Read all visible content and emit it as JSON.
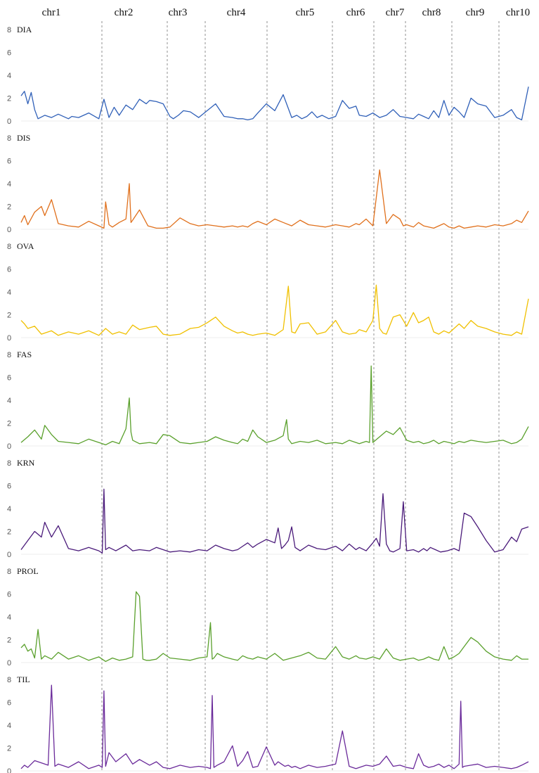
{
  "chart_data": {
    "type": "line",
    "title": "",
    "xlabel": "",
    "ylabel": "",
    "chromosomes": [
      "chr1",
      "chr2",
      "chr3",
      "chr4",
      "chr5",
      "chr6",
      "chr7",
      "chr8",
      "chr9",
      "chr10"
    ],
    "ylim": [
      0,
      8
    ],
    "yticks": [
      0,
      2,
      4,
      6,
      8
    ],
    "grid": false,
    "series": [
      {
        "name": "DIA",
        "color": "#3060b8",
        "x": [
          0,
          2,
          4,
          6,
          8,
          10,
          14,
          18,
          22,
          28,
          30,
          34,
          40,
          46,
          49,
          52,
          55,
          58,
          62,
          66,
          70,
          74,
          76,
          80,
          84,
          88,
          90,
          93,
          96,
          100,
          105,
          110,
          115,
          120,
          125,
          128,
          131,
          134,
          137,
          140,
          145,
          150,
          155,
          160,
          163,
          166,
          169,
          172,
          175,
          178,
          182,
          186,
          190,
          194,
          198,
          200,
          204,
          208,
          212,
          216,
          220,
          224,
          228,
          232,
          235,
          238,
          241,
          244,
          247,
          250,
          253,
          256,
          259,
          262,
          266,
          270,
          275,
          280,
          285,
          290,
          293,
          296,
          300
        ],
        "y": [
          2.2,
          2.6,
          1.5,
          2.5,
          1.0,
          0.2,
          0.5,
          0.3,
          0.6,
          0.2,
          0.4,
          0.3,
          0.7,
          0.2,
          1.9,
          0.3,
          1.2,
          0.5,
          1.4,
          1.0,
          1.9,
          1.5,
          1.8,
          1.7,
          1.5,
          0.4,
          0.2,
          0.5,
          0.9,
          0.8,
          0.3,
          0.9,
          1.5,
          0.4,
          0.3,
          0.2,
          0.2,
          0.1,
          0.2,
          0.7,
          1.5,
          0.9,
          2.3,
          0.3,
          0.5,
          0.2,
          0.4,
          0.8,
          0.3,
          0.5,
          0.2,
          0.4,
          1.8,
          1.1,
          1.3,
          0.5,
          0.4,
          0.7,
          0.3,
          0.5,
          1.0,
          0.4,
          0.3,
          0.2,
          0.6,
          0.4,
          0.2,
          0.9,
          0.3,
          1.8,
          0.5,
          1.2,
          0.8,
          0.3,
          2.0,
          1.5,
          1.3,
          0.3,
          0.5,
          1.0,
          0.3,
          0.1,
          3.0
        ]
      },
      {
        "name": "DIS",
        "color": "#e0701c",
        "x": [
          0,
          2,
          4,
          8,
          12,
          14,
          18,
          22,
          28,
          34,
          40,
          46,
          49,
          50,
          52,
          54,
          58,
          62,
          64,
          65,
          66,
          70,
          75,
          80,
          84,
          88,
          94,
          100,
          105,
          110,
          115,
          120,
          125,
          128,
          131,
          134,
          137,
          140,
          145,
          150,
          155,
          160,
          165,
          170,
          175,
          180,
          186,
          190,
          194,
          198,
          200,
          204,
          208,
          212,
          216,
          220,
          224,
          226,
          228,
          232,
          235,
          238,
          241,
          244,
          247,
          250,
          253,
          256,
          259,
          262,
          266,
          270,
          275,
          280,
          285,
          290,
          293,
          296,
          300
        ],
        "y": [
          0.6,
          1.2,
          0.4,
          1.5,
          2.0,
          1.2,
          2.6,
          0.5,
          0.3,
          0.2,
          0.7,
          0.3,
          0.1,
          2.4,
          0.4,
          0.2,
          0.6,
          0.9,
          4.0,
          0.6,
          0.8,
          1.7,
          0.3,
          0.1,
          0.1,
          0.2,
          1.0,
          0.5,
          0.3,
          0.4,
          0.3,
          0.2,
          0.3,
          0.2,
          0.3,
          0.2,
          0.5,
          0.7,
          0.4,
          0.9,
          0.6,
          0.3,
          0.8,
          0.4,
          0.3,
          0.2,
          0.4,
          0.3,
          0.2,
          0.5,
          0.4,
          0.9,
          0.3,
          5.2,
          0.5,
          1.3,
          0.9,
          0.3,
          0.4,
          0.2,
          0.6,
          0.3,
          0.2,
          0.1,
          0.3,
          0.5,
          0.2,
          0.1,
          0.3,
          0.1,
          0.2,
          0.3,
          0.2,
          0.4,
          0.3,
          0.5,
          0.8,
          0.6,
          1.6
        ]
      },
      {
        "name": "OVA",
        "color": "#f0c000",
        "x": [
          0,
          2,
          4,
          8,
          12,
          18,
          22,
          28,
          34,
          40,
          46,
          50,
          54,
          58,
          62,
          66,
          70,
          76,
          80,
          84,
          88,
          94,
          100,
          105,
          110,
          115,
          120,
          125,
          128,
          131,
          134,
          137,
          140,
          145,
          150,
          155,
          158,
          160,
          162,
          165,
          170,
          175,
          180,
          186,
          190,
          194,
          198,
          200,
          204,
          208,
          210,
          212,
          214,
          216,
          220,
          224,
          226,
          228,
          232,
          235,
          238,
          241,
          244,
          247,
          250,
          253,
          256,
          259,
          262,
          266,
          270,
          275,
          280,
          285,
          290,
          293,
          296,
          300
        ],
        "y": [
          1.5,
          1.2,
          0.8,
          1.0,
          0.3,
          0.6,
          0.2,
          0.5,
          0.3,
          0.6,
          0.2,
          0.8,
          0.3,
          0.5,
          0.3,
          1.1,
          0.7,
          0.9,
          1.0,
          0.3,
          0.2,
          0.3,
          0.8,
          0.9,
          1.3,
          1.8,
          1.0,
          0.6,
          0.4,
          0.5,
          0.3,
          0.2,
          0.3,
          0.4,
          0.2,
          0.7,
          4.5,
          0.5,
          0.4,
          1.2,
          1.3,
          0.3,
          0.5,
          1.5,
          0.5,
          0.3,
          0.4,
          0.7,
          0.5,
          1.5,
          4.6,
          0.8,
          0.4,
          0.3,
          1.8,
          2.0,
          1.5,
          1.0,
          2.2,
          1.3,
          1.5,
          1.8,
          0.5,
          0.3,
          0.6,
          0.4,
          0.8,
          1.2,
          0.8,
          1.5,
          1.0,
          0.8,
          0.5,
          0.3,
          0.2,
          0.5,
          0.3,
          3.4
        ]
      },
      {
        "name": "FAS",
        "color": "#5aa02c",
        "x": [
          0,
          4,
          8,
          12,
          14,
          18,
          22,
          28,
          34,
          40,
          46,
          50,
          54,
          58,
          62,
          64,
          65,
          66,
          70,
          76,
          80,
          84,
          88,
          94,
          100,
          105,
          110,
          115,
          120,
          125,
          128,
          131,
          134,
          137,
          140,
          145,
          150,
          155,
          157,
          158,
          160,
          165,
          170,
          175,
          180,
          186,
          190,
          194,
          198,
          200,
          204,
          206,
          207,
          208,
          212,
          216,
          220,
          224,
          228,
          232,
          235,
          238,
          241,
          244,
          247,
          250,
          253,
          256,
          259,
          262,
          266,
          270,
          275,
          280,
          285,
          290,
          293,
          296,
          300
        ],
        "y": [
          0.3,
          0.8,
          1.4,
          0.6,
          1.8,
          1.0,
          0.4,
          0.3,
          0.2,
          0.6,
          0.3,
          0.1,
          0.4,
          0.2,
          1.5,
          4.2,
          1.2,
          0.5,
          0.2,
          0.3,
          0.2,
          1.0,
          0.9,
          0.3,
          0.2,
          0.3,
          0.4,
          0.8,
          0.5,
          0.3,
          0.2,
          0.6,
          0.4,
          1.4,
          0.8,
          0.3,
          0.5,
          0.9,
          2.3,
          0.6,
          0.2,
          0.4,
          0.3,
          0.5,
          0.2,
          0.3,
          0.2,
          0.5,
          0.3,
          0.2,
          0.4,
          0.3,
          7.0,
          0.3,
          0.8,
          1.3,
          1.0,
          1.6,
          0.5,
          0.3,
          0.4,
          0.2,
          0.3,
          0.5,
          0.2,
          0.4,
          0.3,
          0.2,
          0.4,
          0.3,
          0.5,
          0.4,
          0.3,
          0.4,
          0.5,
          0.2,
          0.3,
          0.6,
          1.7
        ]
      },
      {
        "name": "KRN",
        "color": "#4a1a7a",
        "x": [
          0,
          4,
          8,
          12,
          14,
          18,
          22,
          28,
          34,
          40,
          46,
          48,
          49,
          50,
          52,
          56,
          62,
          66,
          70,
          76,
          80,
          84,
          88,
          94,
          100,
          105,
          110,
          115,
          120,
          125,
          128,
          131,
          134,
          137,
          140,
          145,
          150,
          152,
          154,
          156,
          158,
          160,
          162,
          165,
          170,
          175,
          180,
          186,
          190,
          194,
          198,
          200,
          204,
          208,
          210,
          212,
          214,
          216,
          218,
          220,
          224,
          226,
          228,
          232,
          235,
          238,
          240,
          242,
          245,
          248,
          252,
          256,
          259,
          262,
          266,
          270,
          275,
          280,
          285,
          290,
          293,
          296,
          300
        ],
        "y": [
          0.4,
          1.2,
          2.0,
          1.5,
          2.8,
          1.5,
          2.5,
          0.5,
          0.3,
          0.6,
          0.3,
          0.1,
          5.7,
          0.4,
          0.6,
          0.3,
          0.8,
          0.3,
          0.4,
          0.3,
          0.6,
          0.4,
          0.2,
          0.3,
          0.2,
          0.4,
          0.3,
          0.8,
          0.5,
          0.3,
          0.4,
          0.7,
          1.0,
          0.6,
          0.9,
          1.3,
          1.0,
          2.3,
          0.5,
          0.8,
          1.2,
          2.4,
          0.6,
          0.3,
          0.8,
          0.5,
          0.4,
          0.7,
          0.3,
          0.9,
          0.4,
          0.6,
          0.3,
          1.0,
          1.4,
          0.7,
          5.3,
          0.9,
          0.3,
          0.2,
          0.5,
          4.6,
          0.3,
          0.4,
          0.2,
          0.5,
          0.3,
          0.6,
          0.4,
          0.2,
          0.3,
          0.5,
          0.3,
          3.6,
          3.3,
          2.4,
          1.2,
          0.2,
          0.4,
          1.5,
          1.1,
          2.2,
          2.4
        ]
      },
      {
        "name": "PROL",
        "color": "#5aa02c",
        "x": [
          0,
          2,
          4,
          6,
          8,
          10,
          12,
          14,
          18,
          22,
          28,
          34,
          40,
          46,
          50,
          54,
          58,
          62,
          66,
          68,
          70,
          72,
          74,
          76,
          80,
          84,
          88,
          94,
          100,
          105,
          110,
          112,
          113,
          114,
          116,
          120,
          125,
          128,
          131,
          134,
          137,
          140,
          145,
          150,
          155,
          160,
          165,
          170,
          175,
          180,
          186,
          190,
          194,
          198,
          200,
          204,
          208,
          212,
          216,
          220,
          224,
          228,
          232,
          235,
          238,
          241,
          244,
          247,
          250,
          253,
          256,
          259,
          262,
          266,
          270,
          275,
          280,
          285,
          290,
          293,
          296,
          300
        ],
        "y": [
          1.3,
          1.6,
          1.0,
          1.2,
          0.4,
          2.9,
          0.3,
          0.6,
          0.3,
          0.9,
          0.3,
          0.6,
          0.2,
          0.5,
          0.1,
          0.4,
          0.2,
          0.3,
          0.5,
          6.2,
          5.8,
          0.3,
          0.2,
          0.2,
          0.3,
          0.8,
          0.4,
          0.3,
          0.2,
          0.4,
          0.5,
          3.5,
          0.3,
          0.4,
          0.8,
          0.5,
          0.3,
          0.2,
          0.6,
          0.4,
          0.3,
          0.5,
          0.3,
          0.8,
          0.2,
          0.4,
          0.6,
          0.9,
          0.4,
          0.3,
          1.4,
          0.5,
          0.3,
          0.6,
          0.4,
          0.3,
          0.5,
          0.3,
          1.2,
          0.4,
          0.2,
          0.3,
          0.4,
          0.2,
          0.3,
          0.5,
          0.3,
          0.2,
          1.4,
          0.3,
          0.5,
          0.8,
          1.4,
          2.2,
          1.8,
          1.0,
          0.5,
          0.3,
          0.2,
          0.6,
          0.3,
          0.3
        ]
      },
      {
        "name": "TIL",
        "color": "#6a2a9a",
        "x": [
          0,
          2,
          4,
          8,
          12,
          16,
          18,
          20,
          22,
          28,
          34,
          40,
          46,
          48,
          49,
          50,
          52,
          56,
          62,
          66,
          70,
          76,
          80,
          84,
          88,
          94,
          100,
          105,
          110,
          112,
          113,
          114,
          116,
          120,
          125,
          128,
          131,
          134,
          137,
          140,
          145,
          150,
          152,
          154,
          156,
          158,
          160,
          162,
          165,
          170,
          175,
          180,
          186,
          190,
          194,
          198,
          200,
          204,
          208,
          212,
          216,
          220,
          224,
          228,
          232,
          235,
          238,
          241,
          244,
          247,
          250,
          253,
          256,
          259,
          260,
          261,
          262,
          266,
          270,
          275,
          280,
          285,
          290,
          293,
          296,
          300
        ],
        "y": [
          0.2,
          0.5,
          0.3,
          0.9,
          0.7,
          0.5,
          7.5,
          0.4,
          0.6,
          0.3,
          0.8,
          0.2,
          0.5,
          0.3,
          7.0,
          0.4,
          1.6,
          0.8,
          1.5,
          0.6,
          1.0,
          0.5,
          0.8,
          0.3,
          0.2,
          0.5,
          0.3,
          0.4,
          0.3,
          0.2,
          6.6,
          0.3,
          0.5,
          0.8,
          2.2,
          0.4,
          0.9,
          1.7,
          0.3,
          0.4,
          2.1,
          0.5,
          0.8,
          0.6,
          0.4,
          0.5,
          0.3,
          0.4,
          0.2,
          0.5,
          0.3,
          0.4,
          0.6,
          3.5,
          0.4,
          0.2,
          0.3,
          0.5,
          0.4,
          0.6,
          1.3,
          0.4,
          0.5,
          0.3,
          0.2,
          1.5,
          0.5,
          0.3,
          0.4,
          0.6,
          0.3,
          0.5,
          0.2,
          0.6,
          6.1,
          0.3,
          0.4,
          0.5,
          0.6,
          0.3,
          0.4,
          0.3,
          0.2,
          0.3,
          0.5,
          0.8
        ]
      }
    ]
  }
}
